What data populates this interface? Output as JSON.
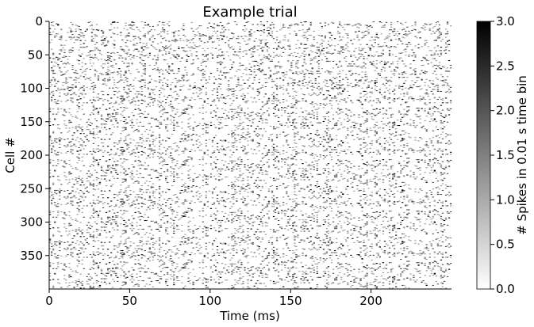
{
  "chart_data": {
    "type": "heatmap",
    "title": "Example trial",
    "xlabel": "Time (ms)",
    "ylabel": "Cell #",
    "x_range": [
      0,
      250
    ],
    "y_range": [
      0,
      400
    ],
    "y_inverted": true,
    "x_ticks": [
      "0",
      "50",
      "100",
      "150",
      "200"
    ],
    "y_ticks": [
      "0",
      "50",
      "100",
      "150",
      "200",
      "250",
      "300",
      "350"
    ],
    "n_cells": 400,
    "n_time_bins": 250,
    "colormap": "gray_r",
    "colorbar": {
      "label": "# Spikes in 0.01 s time bin",
      "min": 0.0,
      "max": 3.0,
      "ticks": [
        "0.0",
        "0.5",
        "1.0",
        "1.5",
        "2.0",
        "2.5",
        "3.0"
      ]
    },
    "grid": false
  }
}
